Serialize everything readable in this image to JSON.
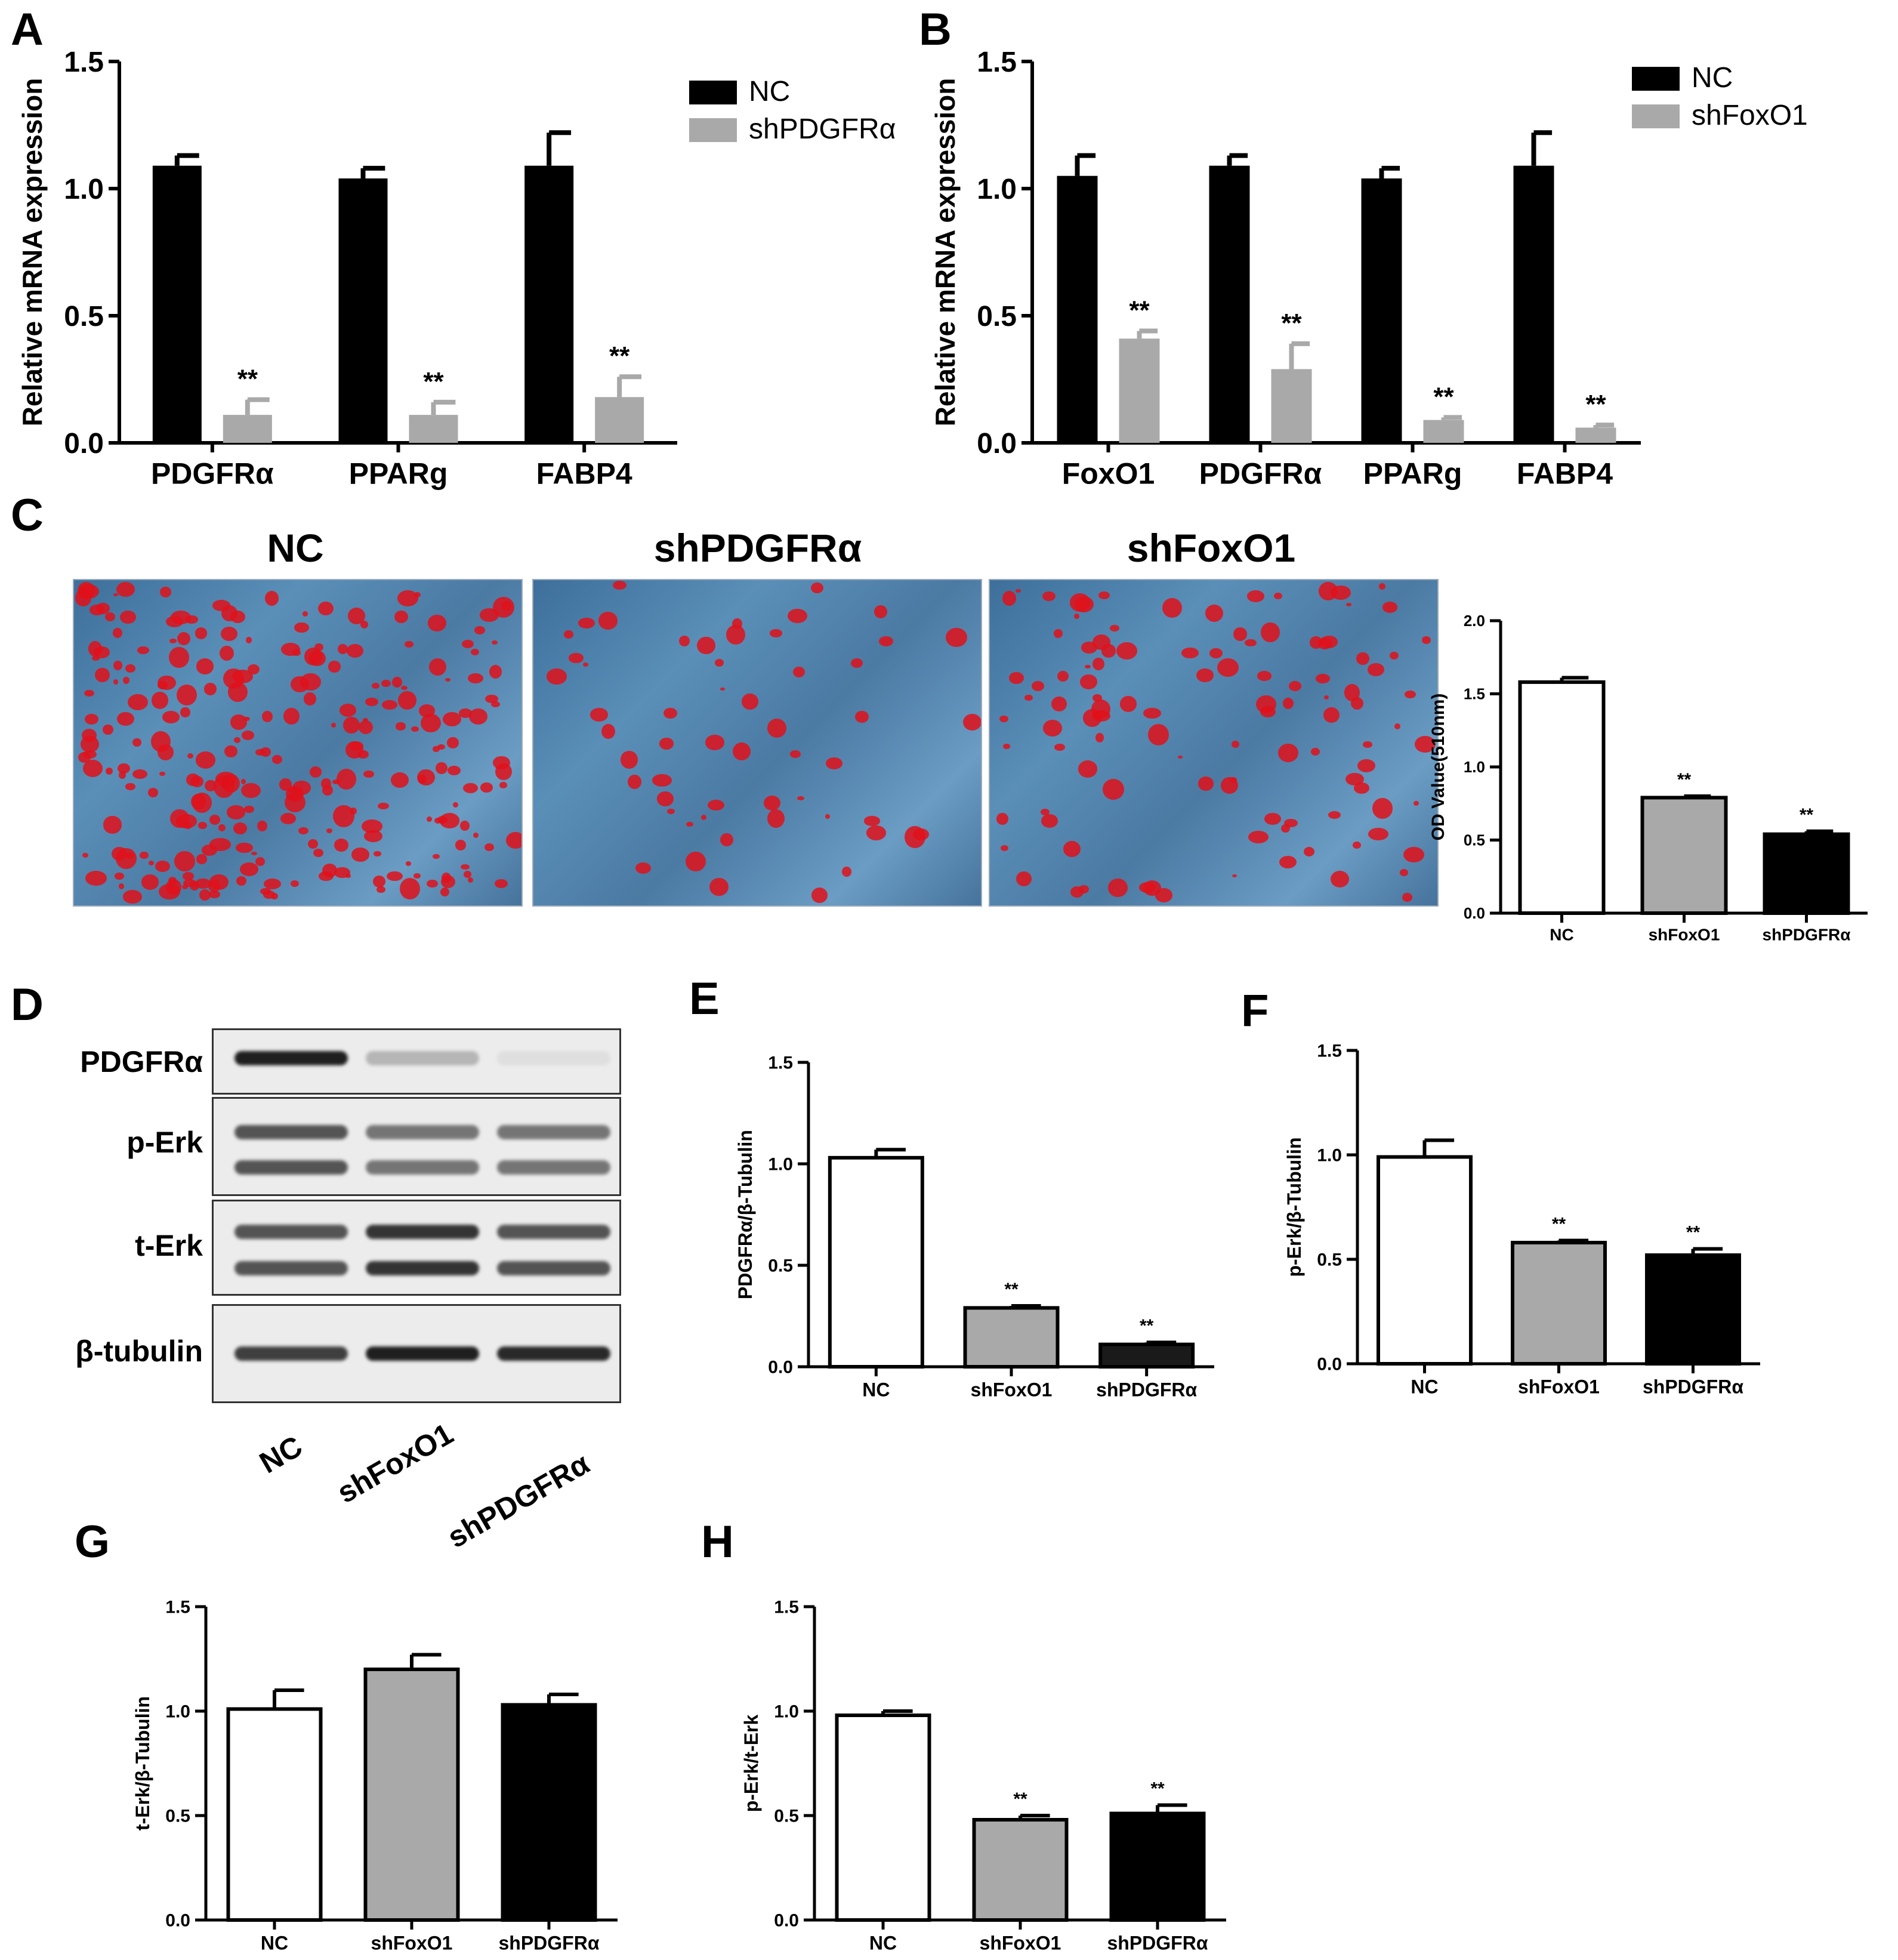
{
  "panel_letters": {
    "A": "A",
    "B": "B",
    "C": "C",
    "D": "D",
    "E": "E",
    "F": "F",
    "G": "G",
    "H": "H"
  },
  "colors": {
    "NC": "#000000",
    "shRNA_bar": "#a9a9a9",
    "bar_edge": "#000000",
    "stain_red": "#e0101a",
    "field_blue": "#4b7aa3"
  },
  "micrographs": {
    "titles": [
      "NC",
      "shPDGFRα",
      "shFoxO1"
    ],
    "stain": "Oil Red O droplets on phase-contrast field"
  },
  "blot": {
    "rows": [
      "PDGFRα",
      "p-Erk",
      "t-Erk",
      "β-tubulin"
    ],
    "lanes": [
      "NC",
      "shFoxO1",
      "shPDGFRα"
    ]
  },
  "chart_data": [
    {
      "id": "A",
      "type": "bar",
      "ylabel": "Relative mRNA expression",
      "ylim": [
        0,
        1.5
      ],
      "yticks": [
        "0.0",
        "0.5",
        "1.0",
        "1.5"
      ],
      "categories": [
        "PDGFRα",
        "PPARg",
        "FABP4"
      ],
      "legend_position": "top-right",
      "series": [
        {
          "name": "NC",
          "color": "#000000",
          "values": [
            1.09,
            1.04,
            1.09
          ],
          "errors": [
            0.04,
            0.04,
            0.13
          ]
        },
        {
          "name": "shPDGFRα",
          "color": "#a9a9a9",
          "values": [
            0.11,
            0.11,
            0.18
          ],
          "errors": [
            0.06,
            0.05,
            0.08
          ],
          "annotations": [
            "**",
            "**",
            "**"
          ]
        }
      ]
    },
    {
      "id": "B",
      "type": "bar",
      "ylabel": "Relative mRNA expression",
      "ylim": [
        0,
        1.5
      ],
      "yticks": [
        "0.0",
        "0.5",
        "1.0",
        "1.5"
      ],
      "categories": [
        "FoxO1",
        "PDGFRα",
        "PPARg",
        "FABP4"
      ],
      "legend_position": "top-right",
      "series": [
        {
          "name": "NC",
          "color": "#000000",
          "values": [
            1.05,
            1.09,
            1.04,
            1.09
          ],
          "errors": [
            0.08,
            0.04,
            0.04,
            0.13
          ]
        },
        {
          "name": "shFoxO1",
          "color": "#a9a9a9",
          "values": [
            0.41,
            0.29,
            0.09,
            0.06
          ],
          "errors": [
            0.03,
            0.1,
            0.01,
            0.01
          ],
          "annotations": [
            "**",
            "**",
            "**",
            "**"
          ]
        }
      ]
    },
    {
      "id": "C",
      "type": "bar",
      "ylabel": "OD Value(510nm)",
      "ylim": [
        0,
        2.0
      ],
      "yticks": [
        "0.0",
        "0.5",
        "1.0",
        "1.5",
        "2.0"
      ],
      "categories": [
        "NC",
        "shFoxO1",
        "shPDGFRα"
      ],
      "values": [
        1.58,
        0.79,
        0.54
      ],
      "errors": [
        0.03,
        0.01,
        0.02
      ],
      "fills": [
        "#ffffff",
        "#a9a9a9",
        "#000000"
      ],
      "annotations": [
        "",
        "**",
        "**"
      ]
    },
    {
      "id": "E",
      "type": "bar",
      "ylabel": "PDGFRα/β-Tubulin",
      "ylim": [
        0,
        1.5
      ],
      "yticks": [
        "0.0",
        "0.5",
        "1.0",
        "1.5"
      ],
      "categories": [
        "NC",
        "shFoxO1",
        "shPDGFRα"
      ],
      "values": [
        1.03,
        0.29,
        0.11
      ],
      "errors": [
        0.04,
        0.01,
        0.01
      ],
      "fills": [
        "#ffffff",
        "#a9a9a9",
        "#1a1a1a"
      ],
      "annotations": [
        "",
        "**",
        "**"
      ]
    },
    {
      "id": "F",
      "type": "bar",
      "ylabel": "p-Erk/β-Tubulin",
      "ylim": [
        0,
        1.5
      ],
      "yticks": [
        "0.0",
        "0.5",
        "1.0",
        "1.5"
      ],
      "categories": [
        "NC",
        "shFoxO1",
        "shPDGFRα"
      ],
      "values": [
        0.99,
        0.58,
        0.52
      ],
      "errors": [
        0.08,
        0.01,
        0.03
      ],
      "fills": [
        "#ffffff",
        "#a9a9a9",
        "#000000"
      ],
      "annotations": [
        "",
        "**",
        "**"
      ]
    },
    {
      "id": "G",
      "type": "bar",
      "ylabel": "t-Erk/β-Tubulin",
      "ylim": [
        0,
        1.5
      ],
      "yticks": [
        "0.0",
        "0.5",
        "1.0",
        "1.5"
      ],
      "categories": [
        "NC",
        "shFoxO1",
        "shPDGFRα"
      ],
      "values": [
        1.01,
        1.2,
        1.03
      ],
      "errors": [
        0.09,
        0.07,
        0.05
      ],
      "fills": [
        "#ffffff",
        "#a9a9a9",
        "#000000"
      ],
      "annotations": [
        "",
        "",
        ""
      ]
    },
    {
      "id": "H",
      "type": "bar",
      "ylabel": "p-Erk/t-Erk",
      "ylim": [
        0,
        1.5
      ],
      "yticks": [
        "0.0",
        "0.5",
        "1.0",
        "1.5"
      ],
      "categories": [
        "NC",
        "shFoxO1",
        "shPDGFRα"
      ],
      "values": [
        0.98,
        0.48,
        0.51
      ],
      "errors": [
        0.02,
        0.02,
        0.04
      ],
      "fills": [
        "#ffffff",
        "#a9a9a9",
        "#000000"
      ],
      "annotations": [
        "",
        "**",
        "**"
      ]
    }
  ]
}
